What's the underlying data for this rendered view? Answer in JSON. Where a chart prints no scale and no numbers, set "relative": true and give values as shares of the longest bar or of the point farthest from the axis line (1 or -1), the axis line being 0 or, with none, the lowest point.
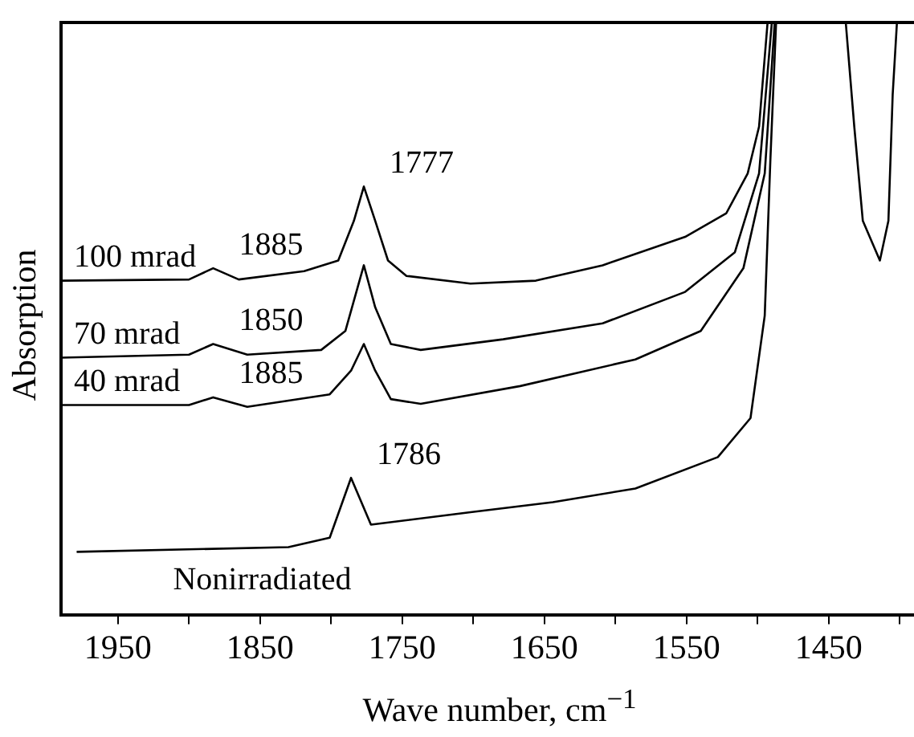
{
  "chart_data": {
    "type": "line",
    "relative": true,
    "xlabel": "Wave number, cm$^{−1}$",
    "ylabel": "Absorption",
    "xlim": [
      1990,
      1390
    ],
    "xticks": [
      1950,
      {
        "value": 1900,
        "label": null
      },
      1850,
      {
        "value": 1800,
        "label": null
      },
      1750,
      {
        "value": 1700,
        "label": null
      },
      1650,
      {
        "value": 1600,
        "label": null
      },
      1550,
      {
        "value": 1500,
        "label": null
      },
      1450,
      {
        "value": 1400,
        "label": null
      }
    ],
    "tick_labels": "x",
    "grid": false,
    "legend": false,
    "marker": "none",
    "line_style": "solid",
    "series": [
      {
        "name": "100 mrad",
        "color": "#000000",
        "x": [
          1990,
          1900,
          1883,
          1865,
          1819,
          1795,
          1784,
          1777,
          1769,
          1760,
          1747,
          1702,
          1656,
          1609,
          1551,
          1522,
          1507,
          1499,
          1493,
          1460,
          1438,
          1432,
          1426,
          1414,
          1408,
          1405,
          1402
        ],
        "values": [
          0.564,
          0.566,
          0.585,
          0.566,
          0.58,
          0.598,
          0.665,
          0.723,
          0.665,
          0.598,
          0.572,
          0.559,
          0.564,
          0.59,
          0.638,
          0.678,
          0.745,
          0.824,
          1,
          null,
          1,
          0.824,
          0.665,
          0.598,
          0.665,
          0.878,
          1
        ]
      },
      {
        "name": "70 mrad",
        "color": "#000000",
        "x": [
          1990,
          1900,
          1883,
          1859,
          1807,
          1790,
          1777,
          1769,
          1758,
          1737,
          1679,
          1609,
          1551,
          1516,
          1499,
          1490
        ],
        "values": [
          0.434,
          0.439,
          0.457,
          0.439,
          0.447,
          0.479,
          0.59,
          0.519,
          0.457,
          0.447,
          0.465,
          0.492,
          0.545,
          0.612,
          0.745,
          1
        ]
      },
      {
        "name": "40 mrad",
        "color": "#000000",
        "x": [
          1990,
          1900,
          1883,
          1859,
          1801,
          1786,
          1777,
          1769,
          1758,
          1737,
          1667,
          1586,
          1540,
          1510,
          1495,
          1488
        ],
        "values": [
          0.354,
          0.354,
          0.367,
          0.351,
          0.372,
          0.412,
          0.457,
          0.412,
          0.364,
          0.356,
          0.386,
          0.431,
          0.479,
          0.585,
          0.745,
          1
        ]
      },
      {
        "name": "Nonirradiated",
        "color": "#000000",
        "x": [
          1979,
          1830,
          1801,
          1786,
          1772,
          1702,
          1644,
          1586,
          1528,
          1505,
          1495,
          1491,
          1487
        ],
        "values": [
          0.106,
          0.114,
          0.13,
          0.231,
          0.152,
          0.173,
          0.19,
          0.213,
          0.266,
          0.332,
          0.505,
          0.77,
          1
        ]
      }
    ],
    "annotations": [
      {
        "text": "1885",
        "x": 1883,
        "y": 0.585
      },
      {
        "text": "1777",
        "x": 1777,
        "y": 0.723
      },
      {
        "text": "1850",
        "x": 1883,
        "y": 0.457
      },
      {
        "text": "1885",
        "x": 1883,
        "y": 0.367
      },
      {
        "text": "1786",
        "x": 1786,
        "y": 0.231
      }
    ]
  }
}
